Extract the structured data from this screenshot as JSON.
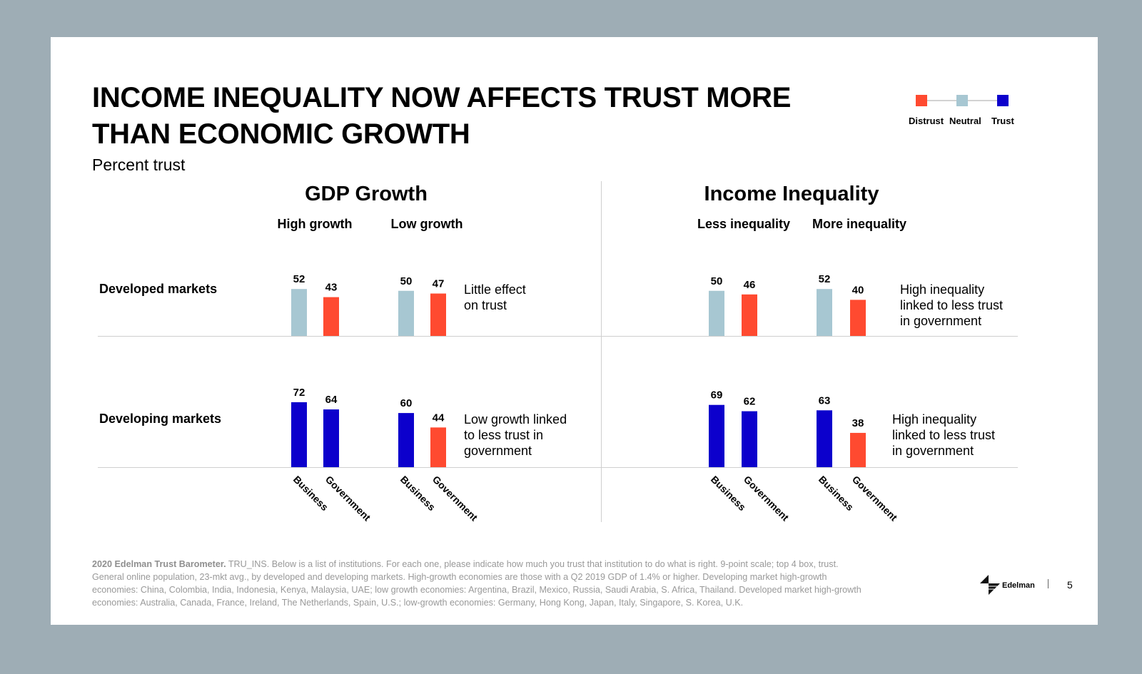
{
  "slide": {
    "title_line1": "INCOME INEQUALITY NOW AFFECTS TRUST MORE",
    "title_line2": "THAN ECONOMIC GROWTH",
    "subtitle": "Percent trust",
    "page_number": "5",
    "logo_text": "Edelman"
  },
  "legend": {
    "items": [
      {
        "label": "Distrust",
        "color": "#ff4a30"
      },
      {
        "label": "Neutral",
        "color": "#a7c7d2"
      },
      {
        "label": "Trust",
        "color": "#0c00cc"
      }
    ]
  },
  "colors": {
    "distrust": "#ff4a30",
    "neutral": "#a7c7d2",
    "trust": "#0c00cc"
  },
  "footer": {
    "bold": "2020 Edelman Trust Barometer.",
    "line1": " TRU_INS. Below is a list of institutions. For each one, please indicate how much you trust that institution to do what is right. 9-point scale; top 4 box, trust.",
    "line2": "General online population, 23-mkt avg., by developed and developing markets. High-growth economies are those with a Q2 2019 GDP of 1.4% or higher. Developing market high-growth",
    "line3": "economies: China, Colombia, India, Indonesia, Kenya, Malaysia, UAE; low growth economies: Argentina, Brazil, Mexico, Russia, Saudi Arabia, S. Africa, Thailand. Developed market high-growth",
    "line4": "economies: Australia, Canada, France, Ireland, The Netherlands, Spain, U.S.; low-growth economies: Germany, Hong Kong, Japan, Italy, Singapore, S. Korea, U.K."
  },
  "chart_data": [
    {
      "type": "bar",
      "title": "GDP Growth",
      "groups": [
        "High growth",
        "Low growth"
      ],
      "categories": [
        "Business",
        "Government"
      ],
      "rows": [
        {
          "name": "Developed markets",
          "values": [
            [
              52,
              43
            ],
            [
              50,
              47
            ]
          ],
          "status": [
            [
              "neutral",
              "distrust"
            ],
            [
              "neutral",
              "distrust"
            ]
          ],
          "note": [
            "Little effect",
            "on trust"
          ]
        },
        {
          "name": "Developing markets",
          "values": [
            [
              72,
              64
            ],
            [
              60,
              44
            ]
          ],
          "status": [
            [
              "trust",
              "trust"
            ],
            [
              "trust",
              "distrust"
            ]
          ],
          "note": [
            "Low growth linked",
            "to less trust in",
            "government"
          ]
        }
      ]
    },
    {
      "type": "bar",
      "title": "Income Inequality",
      "groups": [
        "Less inequality",
        "More inequality"
      ],
      "categories": [
        "Business",
        "Government"
      ],
      "rows": [
        {
          "name": "Developed markets",
          "values": [
            [
              50,
              46
            ],
            [
              52,
              40
            ]
          ],
          "status": [
            [
              "neutral",
              "distrust"
            ],
            [
              "neutral",
              "distrust"
            ]
          ],
          "note": [
            "High inequality",
            "linked to less trust",
            "in government"
          ]
        },
        {
          "name": "Developing markets",
          "values": [
            [
              69,
              62
            ],
            [
              63,
              38
            ]
          ],
          "status": [
            [
              "trust",
              "trust"
            ],
            [
              "trust",
              "distrust"
            ]
          ],
          "note": [
            "High inequality",
            "linked to less trust",
            "in government"
          ]
        }
      ]
    }
  ]
}
